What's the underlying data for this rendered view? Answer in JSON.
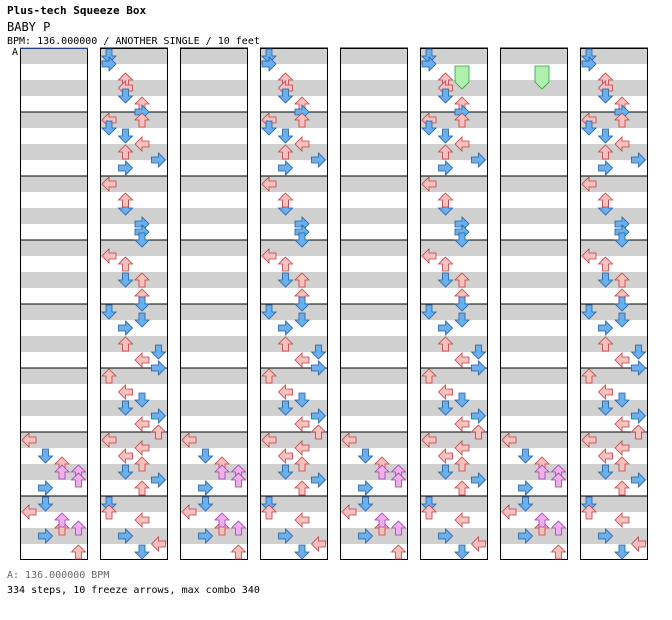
{
  "header": {
    "app_title": "Plus-tech Squeeze Box",
    "song_title": "BABY P",
    "chart_info": "BPM: 136.000000 / ANOTHER SINGLE / 10 feet",
    "bpm_marker": "A"
  },
  "footer": {
    "bpm_line": "A: 136.000000 BPM",
    "stats_line": "334 steps, 10 freeze arrows, max combo 340"
  },
  "colors": {
    "left": "#f8c0c0",
    "left_stroke": "#c04040",
    "down": "#6ab0f0",
    "down_stroke": "#2060a0",
    "up": "#f8c0c0",
    "up_stroke": "#c04040",
    "right": "#6ab0f0",
    "right_stroke": "#2060a0",
    "freeze_up": "#f0b0f0",
    "freeze_stroke": "#a040a0",
    "hold_green": "#b0f0b0",
    "hold_green_stroke": "#30a030",
    "stripe": "#d0d0d0"
  },
  "chart": {
    "columns": 8,
    "measures_per_column": 8,
    "notes": [
      [],
      [],
      [],
      [],
      [],
      [],
      [
        [
          0,
          0,
          "L"
        ],
        [
          2,
          1,
          "D"
        ],
        [
          3,
          2,
          "U"
        ],
        [
          4,
          2,
          "F"
        ],
        [
          4,
          3,
          "F"
        ],
        [
          6,
          1,
          "R"
        ],
        [
          5,
          3,
          "F"
        ]
      ],
      [
        [
          1,
          0,
          "L"
        ],
        [
          0,
          1,
          "D"
        ],
        [
          4,
          1,
          "R"
        ],
        [
          3,
          2,
          "U"
        ],
        [
          2,
          2,
          "F"
        ],
        [
          3,
          3,
          "F"
        ],
        [
          6,
          3,
          "U"
        ],
        [
          7,
          3,
          "R"
        ]
      ],
      [
        [
          0,
          0,
          "D"
        ],
        [
          1,
          0,
          "R"
        ],
        [
          3,
          1,
          "U"
        ],
        [
          4,
          1,
          "L"
        ],
        [
          5,
          1,
          "D"
        ],
        [
          6,
          2,
          "U"
        ],
        [
          7,
          2,
          "R"
        ]
      ],
      [
        [
          0,
          0,
          "L"
        ],
        [
          1,
          0,
          "D"
        ],
        [
          4,
          1,
          "U"
        ],
        [
          2,
          1,
          "D"
        ],
        [
          6,
          1,
          "R"
        ],
        [
          0,
          2,
          "U"
        ],
        [
          3,
          2,
          "L"
        ],
        [
          5,
          3,
          "R"
        ]
      ],
      [
        [
          0,
          0,
          "L"
        ],
        [
          3,
          1,
          "D"
        ],
        [
          5,
          2,
          "R"
        ],
        [
          2,
          1,
          "U"
        ],
        [
          6,
          2,
          "R"
        ],
        [
          7,
          2,
          "D"
        ]
      ],
      [
        [
          1,
          0,
          "L"
        ],
        [
          2,
          1,
          "U"
        ],
        [
          4,
          1,
          "D"
        ],
        [
          6,
          2,
          "U"
        ],
        [
          4,
          2,
          "U"
        ],
        [
          7,
          2,
          "D"
        ]
      ],
      [
        [
          0,
          0,
          "D"
        ],
        [
          2,
          1,
          "R"
        ],
        [
          4,
          1,
          "U"
        ],
        [
          6,
          2,
          "L"
        ],
        [
          1,
          2,
          "D"
        ],
        [
          5,
          3,
          "D"
        ],
        [
          7,
          3,
          "R"
        ]
      ],
      [
        [
          0,
          0,
          "U"
        ],
        [
          2,
          1,
          "L"
        ],
        [
          4,
          1,
          "D"
        ],
        [
          6,
          2,
          "L"
        ],
        [
          3,
          2,
          "D"
        ],
        [
          5,
          3,
          "R"
        ],
        [
          7,
          3,
          "U"
        ]
      ],
      [
        [
          0,
          0,
          "L"
        ],
        [
          2,
          1,
          "L"
        ],
        [
          4,
          1,
          "D"
        ],
        [
          6,
          2,
          "U"
        ],
        [
          1,
          2,
          "L"
        ],
        [
          3,
          2,
          "U"
        ],
        [
          5,
          3,
          "R"
        ]
      ],
      [
        [
          0,
          0,
          "D"
        ],
        [
          1,
          0,
          "U"
        ],
        [
          4,
          1,
          "R"
        ],
        [
          6,
          2,
          "D"
        ],
        [
          2,
          2,
          "L"
        ],
        [
          5,
          3,
          "L"
        ],
        [
          7,
          3,
          "U"
        ]
      ]
    ]
  }
}
